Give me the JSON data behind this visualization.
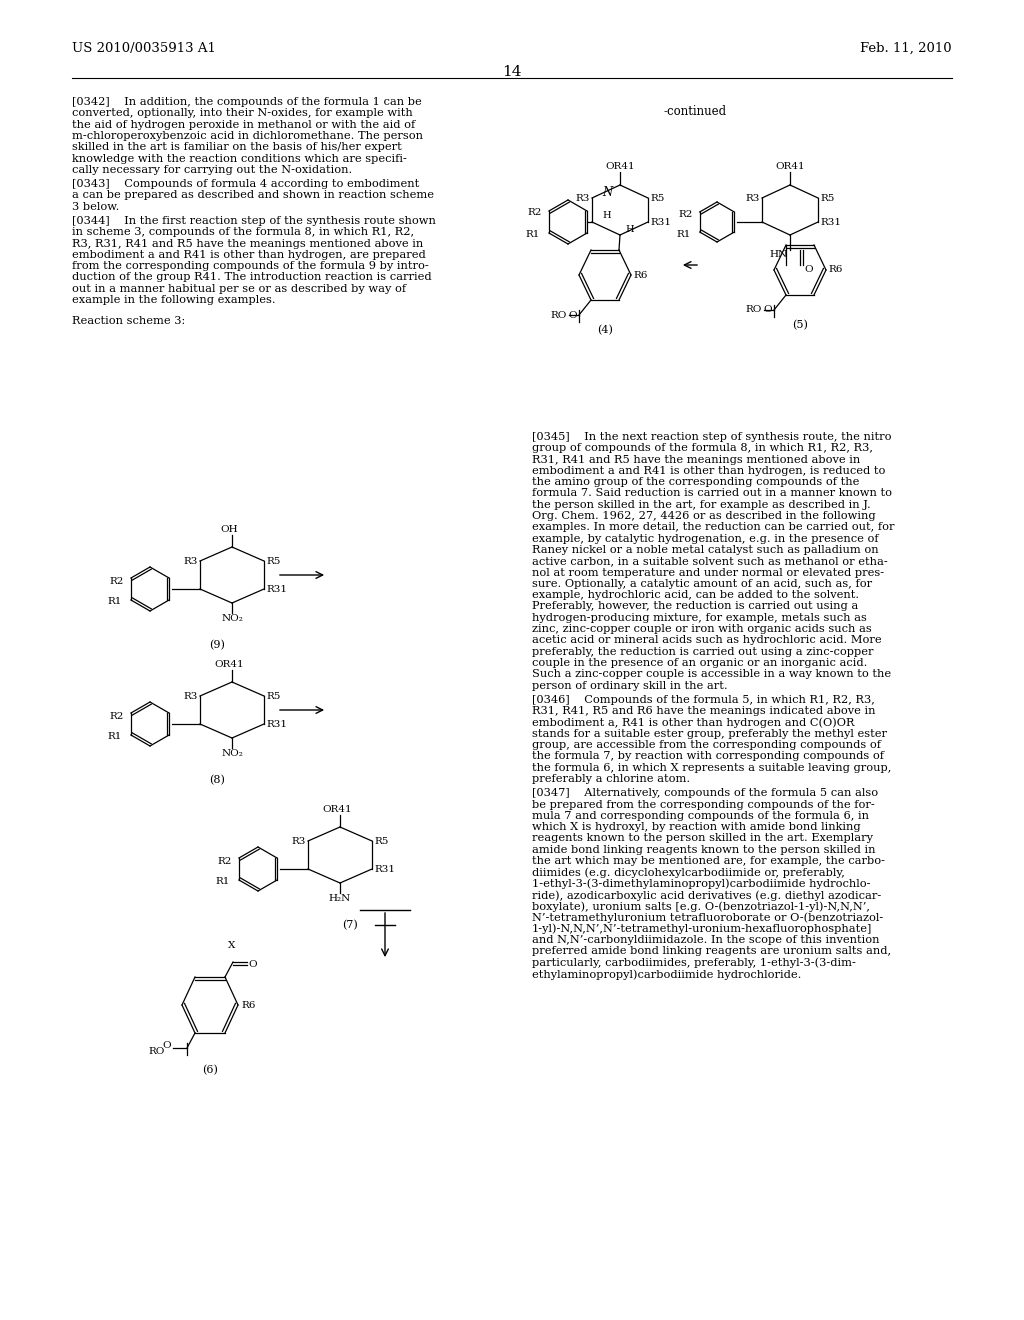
{
  "header_left": "US 2010/0035913 A1",
  "header_right": "Feb. 11, 2010",
  "page_number": "14",
  "bg_color": "#ffffff"
}
